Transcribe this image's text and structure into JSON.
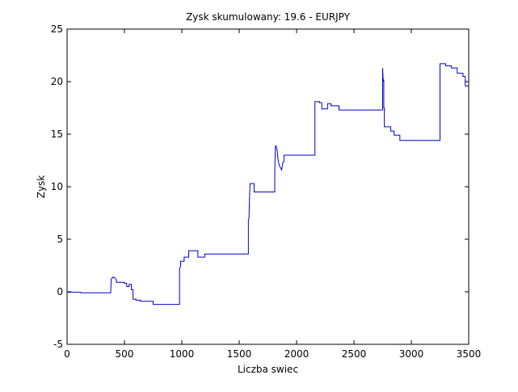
{
  "chart_data": {
    "type": "line",
    "title": "Zysk skumulowany: 19.6 - EURJPY",
    "xlabel": "Liczba swiec",
    "ylabel": "Zysk",
    "xlim": [
      0,
      3500
    ],
    "ylim": [
      -5,
      25
    ],
    "xticks": [
      0,
      500,
      1000,
      1500,
      2000,
      2500,
      3000,
      3500
    ],
    "yticks": [
      -5,
      0,
      5,
      10,
      15,
      20,
      25
    ],
    "grid": false,
    "line_color": "#0000cc",
    "series": [
      {
        "x": [
          0,
          10,
          10,
          120,
          120,
          380,
          385,
          400,
          420,
          430,
          430,
          500,
          500,
          520,
          520,
          540,
          540,
          560,
          560,
          575,
          575,
          600,
          600,
          640,
          640,
          750,
          750,
          980,
          980,
          985,
          990,
          990,
          1020,
          1020,
          1060,
          1060,
          1140,
          1140,
          1200,
          1200,
          1580,
          1580,
          1585,
          1590,
          1595,
          1600,
          1600,
          1630,
          1630,
          1810,
          1810,
          1815,
          1820,
          1830,
          1840,
          1850,
          1860,
          1870,
          1880,
          1890,
          1890,
          2160,
          2160,
          2200,
          2200,
          2220,
          2220,
          2270,
          2270,
          2300,
          2300,
          2370,
          2370,
          2390,
          2390,
          2750,
          2750,
          2755,
          2760,
          2760,
          2765,
          2765,
          2820,
          2820,
          2850,
          2850,
          2900,
          2900,
          3250,
          3250,
          3300,
          3300,
          3350,
          3350,
          3400,
          3400,
          3450,
          3450,
          3470,
          3470,
          3500
        ],
        "y": [
          0,
          0,
          -0.05,
          -0.05,
          -0.1,
          -0.1,
          1.2,
          1.4,
          1.3,
          1.1,
          0.9,
          0.9,
          0.8,
          0.8,
          0.5,
          0.5,
          0.7,
          0.7,
          0.2,
          0.2,
          -0.7,
          -0.7,
          -0.8,
          -0.8,
          -0.9,
          -0.9,
          -1.2,
          -1.2,
          2.2,
          2.3,
          2.5,
          2.9,
          2.9,
          3.3,
          3.3,
          3.9,
          3.9,
          3.3,
          3.3,
          3.6,
          3.6,
          6.8,
          7.0,
          9.0,
          10.3,
          10.3,
          10.3,
          10.3,
          9.5,
          9.5,
          11.5,
          13.8,
          13.9,
          13.5,
          12.5,
          12.0,
          11.8,
          11.6,
          12.3,
          12.4,
          13.0,
          13.0,
          18.1,
          18.1,
          18.0,
          18.0,
          17.4,
          17.4,
          17.9,
          17.9,
          17.7,
          17.7,
          17.3,
          17.3,
          17.3,
          17.3,
          21.3,
          20.0,
          20.2,
          17.5,
          17.5,
          15.7,
          15.7,
          15.3,
          15.3,
          14.9,
          14.9,
          14.4,
          14.4,
          21.7,
          21.7,
          21.5,
          21.5,
          21.3,
          21.3,
          20.8,
          20.8,
          20.5,
          20.5,
          19.6,
          19.6
        ]
      }
    ]
  }
}
